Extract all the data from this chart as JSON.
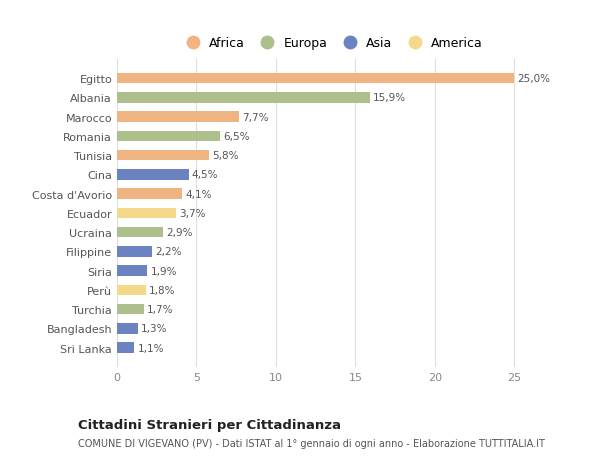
{
  "countries": [
    "Egitto",
    "Albania",
    "Marocco",
    "Romania",
    "Tunisia",
    "Cina",
    "Costa d'Avorio",
    "Ecuador",
    "Ucraina",
    "Filippine",
    "Siria",
    "Perù",
    "Turchia",
    "Bangladesh",
    "Sri Lanka"
  ],
  "values": [
    25.0,
    15.9,
    7.7,
    6.5,
    5.8,
    4.5,
    4.1,
    3.7,
    2.9,
    2.2,
    1.9,
    1.8,
    1.7,
    1.3,
    1.1
  ],
  "labels": [
    "25,0%",
    "15,9%",
    "7,7%",
    "6,5%",
    "5,8%",
    "4,5%",
    "4,1%",
    "3,7%",
    "2,9%",
    "2,2%",
    "1,9%",
    "1,8%",
    "1,7%",
    "1,3%",
    "1,1%"
  ],
  "continents": [
    "Africa",
    "Europa",
    "Africa",
    "Europa",
    "Africa",
    "Asia",
    "Africa",
    "America",
    "Europa",
    "Asia",
    "Asia",
    "America",
    "Europa",
    "Asia",
    "Asia"
  ],
  "colors": {
    "Africa": "#F0B482",
    "Europa": "#ADBF8B",
    "Asia": "#6B83C0",
    "America": "#F5D98B"
  },
  "legend_order": [
    "Africa",
    "Europa",
    "Asia",
    "America"
  ],
  "title": "Cittadini Stranieri per Cittadinanza",
  "subtitle": "COMUNE DI VIGEVANO (PV) - Dati ISTAT al 1° gennaio di ogni anno - Elaborazione TUTTITALIA.IT",
  "xlim": [
    0,
    27
  ],
  "xticks": [
    0,
    5,
    10,
    15,
    20,
    25
  ],
  "background_color": "#FFFFFF",
  "bar_height": 0.55,
  "grid_color": "#DDDDDD"
}
